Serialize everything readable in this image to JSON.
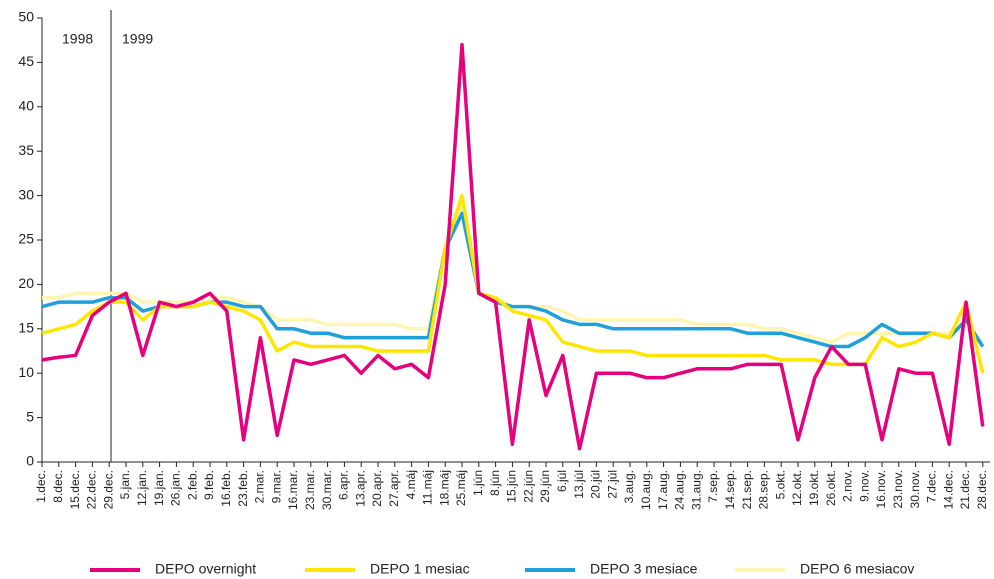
{
  "chart_data": {
    "type": "line",
    "annotations": [
      "1998",
      "1999"
    ],
    "categories": [
      "1.dec.",
      "8.dec.",
      "15.dec.",
      "22.dec.",
      "29.dec.",
      "5.jan.",
      "12.jan.",
      "19.jan.",
      "26.jan.",
      "2.feb.",
      "9.feb.",
      "16.feb.",
      "23.feb.",
      "2.mar.",
      "9.mar.",
      "16.mar.",
      "23.mar.",
      "30.mar.",
      "6.apr.",
      "13.apr.",
      "20.apr.",
      "27.apr.",
      "4.máj",
      "11.máj",
      "18.máj",
      "25.máj",
      "1.jún",
      "8.jún",
      "15.jún",
      "22.jún",
      "29.jún",
      "6.júl",
      "13.júl",
      "20.júl",
      "27.júl",
      "3.aug.",
      "10.aug.",
      "17.aug.",
      "24.aug.",
      "31.aug.",
      "7.sep.",
      "14.sep.",
      "21.sep.",
      "28.sep.",
      "5.okt.",
      "12.okt.",
      "19.okt.",
      "26.okt.",
      "2.nov.",
      "9.nov.",
      "16.nov.",
      "23.nov.",
      "30.nov.",
      "7.dec.",
      "14.dec.",
      "21.dec.",
      "28.dec."
    ],
    "series": [
      {
        "name": "DEPO overnight",
        "color": "#e6007e",
        "values": [
          11.5,
          11.8,
          12,
          16.5,
          18,
          19,
          12,
          18,
          17.5,
          18,
          19,
          17,
          2.5,
          14,
          3,
          11.5,
          11,
          11.5,
          12,
          10,
          12,
          10.5,
          11,
          9.5,
          20,
          47,
          19,
          18,
          2,
          16,
          7.5,
          12,
          1.5,
          10,
          10,
          10,
          9.5,
          9.5,
          10,
          10.5,
          10.5,
          10.5,
          11,
          11,
          11,
          2.5,
          9.5,
          13,
          11,
          11,
          2.5,
          10.5,
          10,
          10,
          2,
          18,
          4
        ]
      },
      {
        "name": "DEPO 1 mesiac",
        "color": "#ffe600",
        "values": [
          14.5,
          15,
          15.5,
          17,
          18,
          18,
          16,
          17.5,
          17.5,
          17.5,
          18,
          17.5,
          17,
          16,
          12.5,
          13.5,
          13,
          13,
          13,
          13,
          12.5,
          12.5,
          12.5,
          12.5,
          24,
          30,
          19,
          18.5,
          17,
          16.5,
          16,
          13.5,
          13,
          12.5,
          12.5,
          12.5,
          12,
          12,
          12,
          12,
          12,
          12,
          12,
          12,
          11.5,
          11.5,
          11.5,
          11,
          11,
          11,
          14,
          13,
          13.5,
          14.5,
          14,
          18,
          10
        ]
      },
      {
        "name": "DEPO 3 mesiace",
        "color": "#1ea0dc",
        "values": [
          17.5,
          18,
          18,
          18,
          18.5,
          18.5,
          17,
          17.5,
          17.5,
          17.5,
          18,
          18,
          17.5,
          17.5,
          15,
          15,
          14.5,
          14.5,
          14,
          14,
          14,
          14,
          14,
          14,
          24,
          28,
          19,
          18,
          17.5,
          17.5,
          17,
          16,
          15.5,
          15.5,
          15,
          15,
          15,
          15,
          15,
          15,
          15,
          15,
          14.5,
          14.5,
          14.5,
          14,
          13.5,
          13,
          13,
          14,
          15.5,
          14.5,
          14.5,
          14.5,
          14,
          16,
          13
        ]
      },
      {
        "name": "DEPO 6 mesiacov",
        "color": "#fff5b0",
        "values": [
          18.5,
          18.5,
          19,
          19,
          19,
          19,
          18,
          18,
          18,
          18,
          18.5,
          18.5,
          18,
          17.5,
          16,
          16,
          16,
          15.5,
          15.5,
          15.5,
          15.5,
          15.5,
          15,
          15,
          24.5,
          29,
          19,
          18.5,
          17.5,
          17.5,
          17.5,
          17,
          16,
          16,
          16,
          16,
          16,
          16,
          16,
          15.5,
          15.5,
          15.5,
          15.5,
          15,
          15,
          14.5,
          14,
          13.5,
          14.5,
          14.5,
          14.5,
          14.5,
          14.5,
          14.5,
          14.5,
          15.5,
          13
        ]
      }
    ],
    "ylim": [
      0,
      50
    ],
    "yticks": [
      0,
      5,
      10,
      15,
      20,
      25,
      30,
      35,
      40,
      45,
      50
    ]
  }
}
